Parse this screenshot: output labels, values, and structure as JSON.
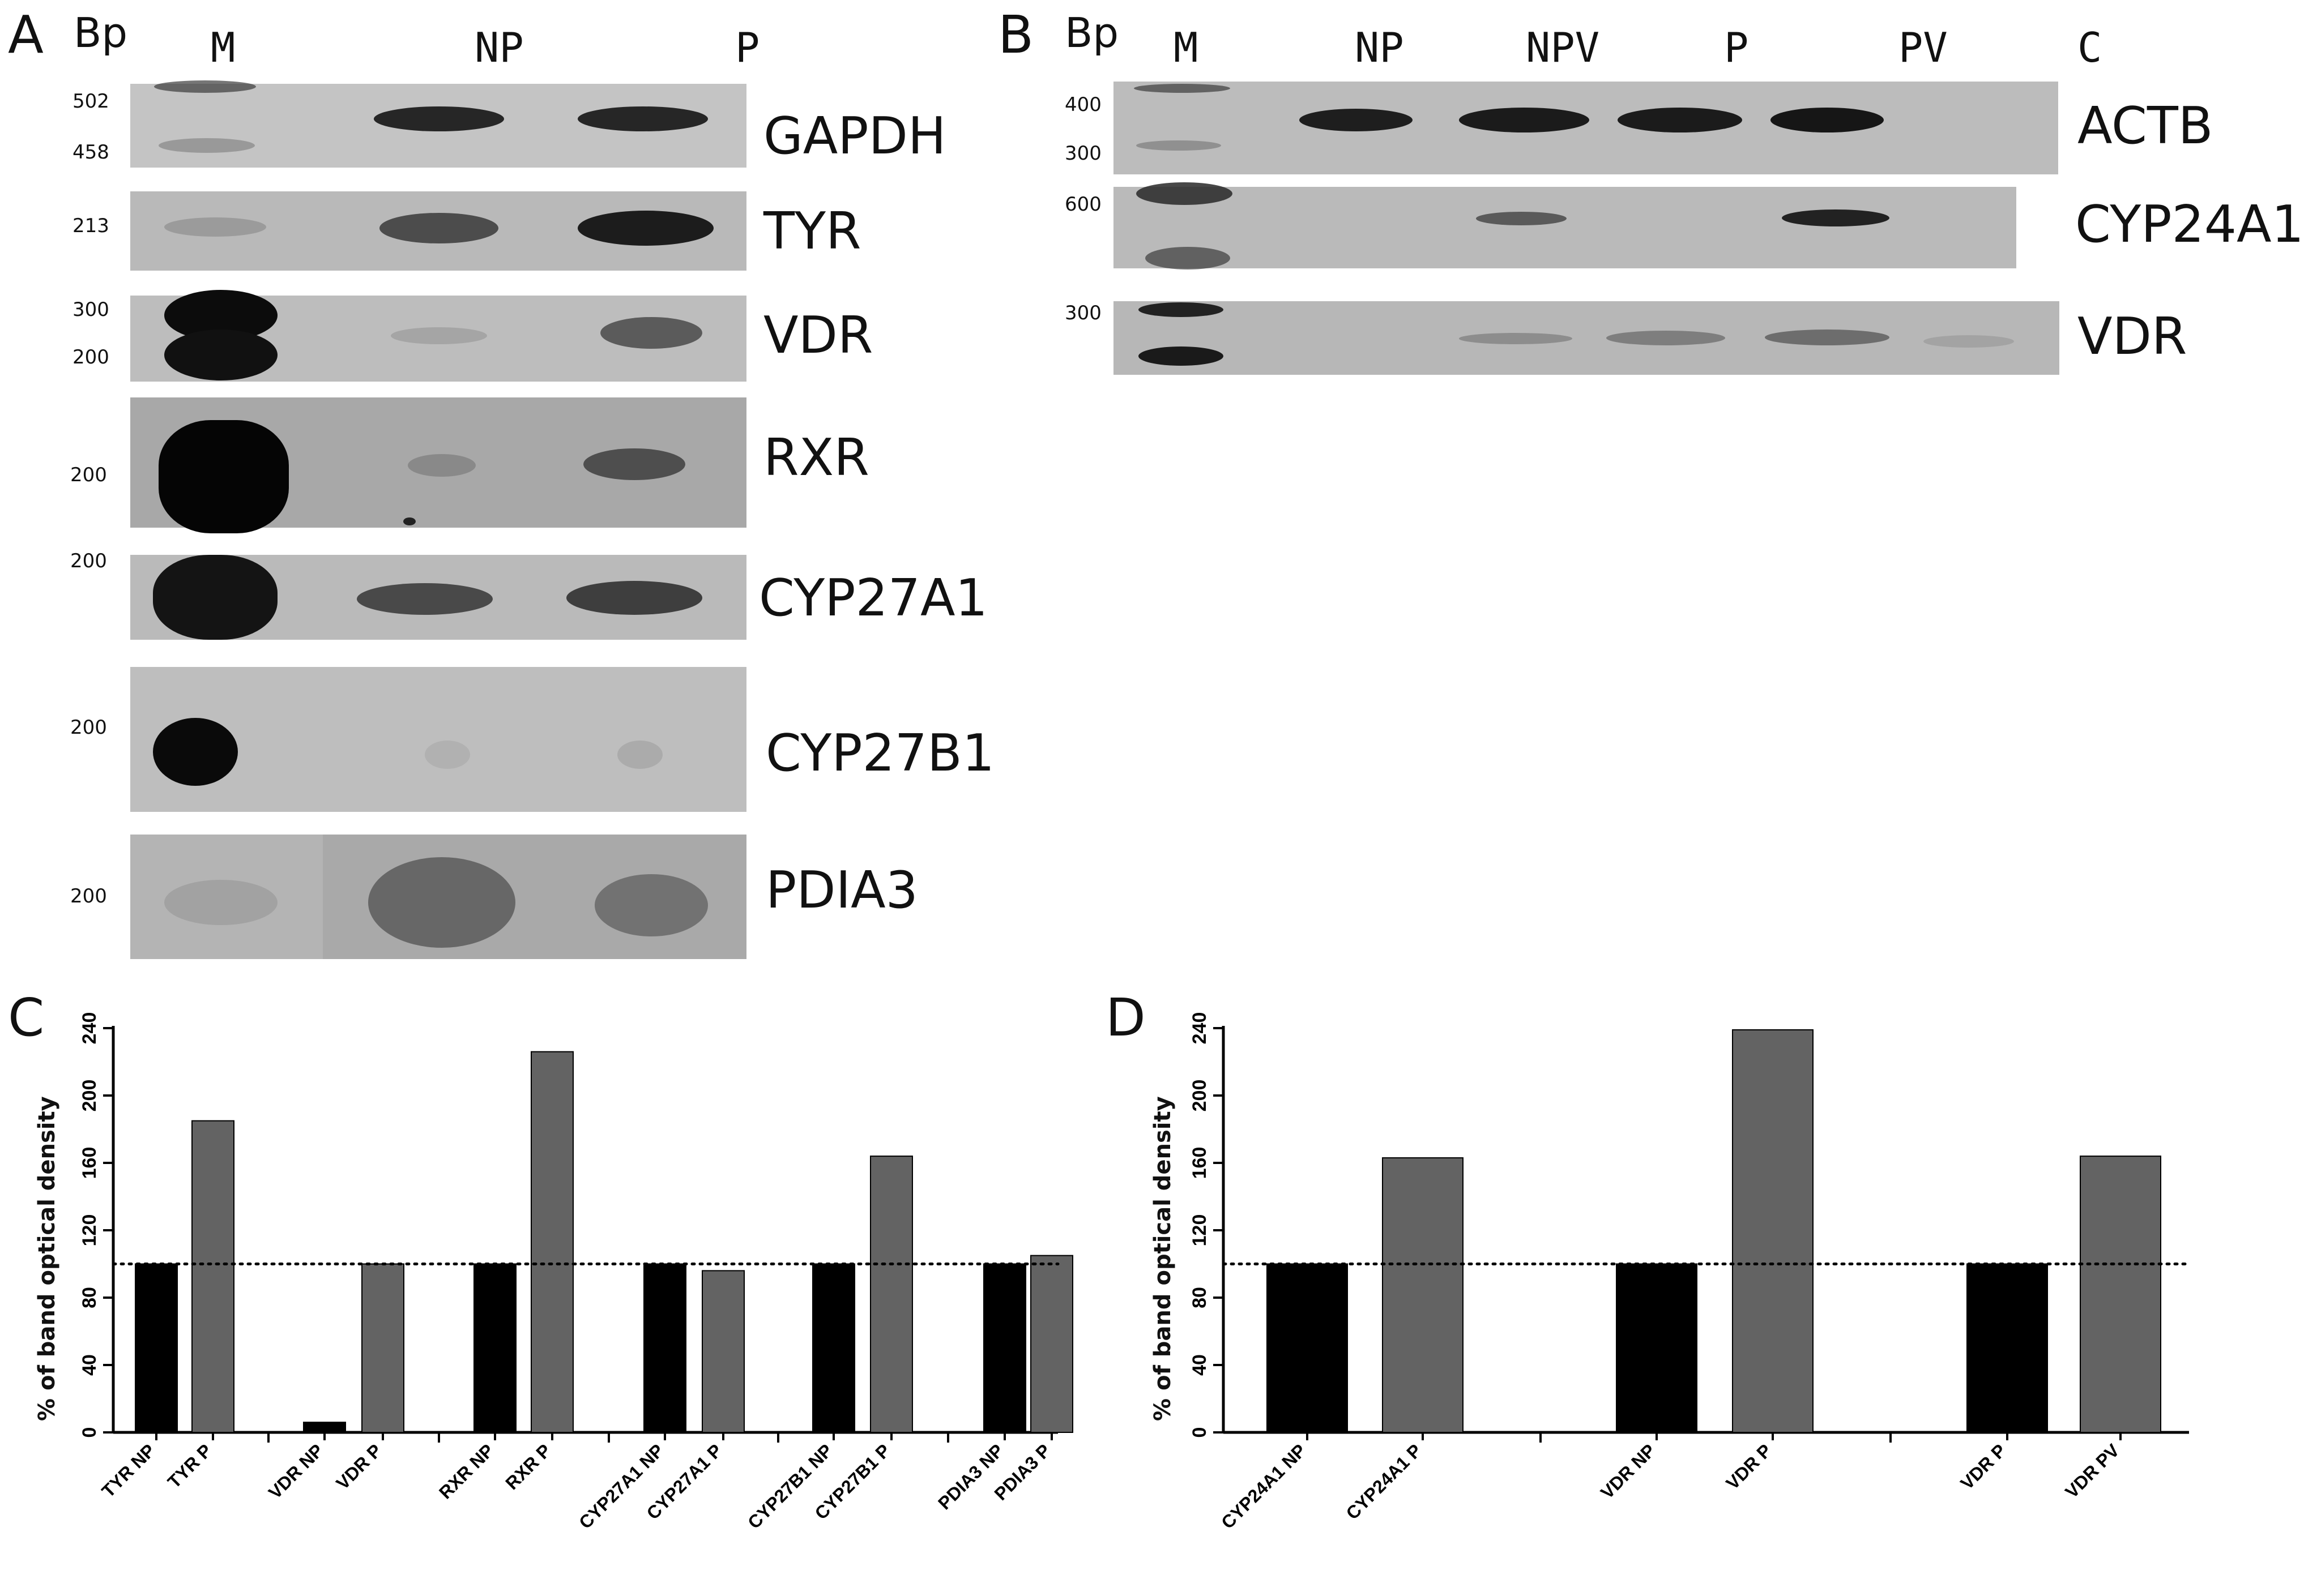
{
  "panels": {
    "a": "A",
    "b": "B",
    "c": "C",
    "d": "D"
  },
  "gel_a": {
    "bp_label": "Bp",
    "lanes": [
      "M",
      "NP",
      "P"
    ],
    "rows": [
      {
        "gene": "GAPDH",
        "markers": [
          "502",
          "458"
        ]
      },
      {
        "gene": "TYR",
        "markers": [
          "213"
        ]
      },
      {
        "gene": "VDR",
        "markers": [
          "300",
          "200"
        ]
      },
      {
        "gene": "RXR",
        "markers": [
          "200"
        ]
      },
      {
        "gene": "CYP27A1",
        "markers": [
          "200"
        ]
      },
      {
        "gene": "CYP27B1",
        "markers": [
          "200"
        ]
      },
      {
        "gene": "PDIA3",
        "markers": [
          "200"
        ]
      }
    ]
  },
  "gel_b": {
    "bp_label": "Bp",
    "lanes": [
      "M",
      "NP",
      "NPV",
      "P",
      "PV",
      "C"
    ],
    "rows": [
      {
        "gene": "ACTB",
        "markers": [
          "400",
          "300"
        ]
      },
      {
        "gene": "CYP24A1",
        "markers": [
          "600"
        ]
      },
      {
        "gene": "VDR",
        "markers": [
          "300"
        ]
      }
    ]
  },
  "chart_data": [
    {
      "type": "bar",
      "panel": "C",
      "ylabel": "% of band optical density",
      "ylim": [
        0,
        240
      ],
      "yticks": [
        "0",
        "40",
        "80",
        "120",
        "160",
        "200",
        "240"
      ],
      "reference_line": 100,
      "categories": [
        "TYR NP",
        "TYR P",
        "VDR NP",
        "VDR P",
        "RXR NP",
        "RXR P",
        "CYP27A1 NP",
        "CYP27A1 P",
        "CYP27B1 NP",
        "CYP27B1 P",
        "PDIA3 NP",
        "PDIA3 P"
      ],
      "values": [
        100,
        185,
        6,
        100,
        100,
        226,
        100,
        96,
        100,
        164,
        100,
        105
      ],
      "colors": [
        "#000000",
        "#636363"
      ]
    },
    {
      "type": "bar",
      "panel": "D",
      "ylabel": "% of band optical density",
      "ylim": [
        0,
        240
      ],
      "yticks": [
        "0",
        "40",
        "80",
        "120",
        "160",
        "200",
        "240"
      ],
      "reference_line": 100,
      "categories": [
        "CYP24A1 NP",
        "CYP24A1 P",
        "VDR NP",
        "VDR P",
        "VDR P",
        "VDR PV"
      ],
      "values": [
        100,
        163,
        100,
        239,
        100,
        164
      ],
      "colors": [
        "#000000",
        "#636363"
      ]
    }
  ]
}
